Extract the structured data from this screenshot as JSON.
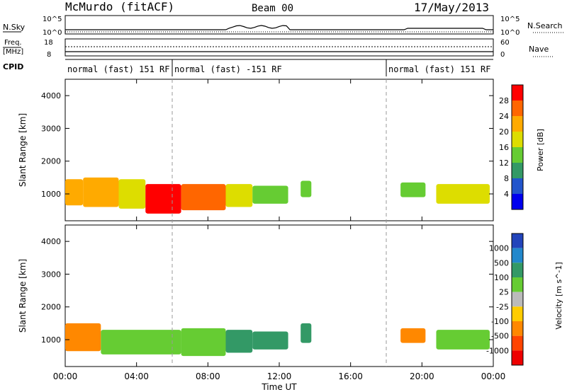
{
  "header": {
    "station": "McMurdo (fitACF)",
    "beam": "Beam 00",
    "date": "17/May/2013"
  },
  "strip": {
    "nsky_label": "N.Sky",
    "nsky_ticks": [
      "10^5",
      "10^0"
    ],
    "nsearch_label": "N.Search",
    "nsearch_ticks": [
      "10^5",
      "10^0"
    ],
    "freq_label_line1": "Freq.",
    "freq_label_line2": "[MHz]",
    "freq_ticks": [
      "18",
      "8"
    ],
    "nave_label": "Nave",
    "nave_ticks": [
      "60",
      "0"
    ],
    "cpid_label": "CPID",
    "modes": [
      {
        "label": "normal (fast) 151 RF",
        "start": 0,
        "end": 6
      },
      {
        "label": "normal (fast) -151 RF",
        "start": 6,
        "end": 18
      },
      {
        "label": "normal (fast) 151 RF",
        "start": 18,
        "end": 24
      }
    ]
  },
  "axes": {
    "x_ticks": [
      "00:00",
      "04:00",
      "08:00",
      "12:00",
      "16:00",
      "20:00",
      "00:00"
    ],
    "x_values": [
      0,
      4,
      8,
      12,
      16,
      20,
      24
    ],
    "xlabel": "Time UT",
    "ylabel": "Slant Range [km]",
    "y_ticks": [
      "4000",
      "3000",
      "2000",
      "1000"
    ],
    "y_values": [
      4000,
      3000,
      2000,
      1000
    ],
    "ylim": [
      180,
      4500
    ],
    "xlim": [
      0,
      24
    ]
  },
  "colorbars": {
    "power": {
      "label": "Power [dB]",
      "ticks": [
        "28",
        "24",
        "20",
        "16",
        "12",
        "8",
        "4"
      ],
      "colors": [
        "#ff0000",
        "#ff6600",
        "#ffaa00",
        "#dddd00",
        "#66cc33",
        "#339966",
        "#2255cc",
        "#0000ee"
      ]
    },
    "velocity": {
      "label": "Velocity [m s^-1]",
      "ticks": [
        "1000",
        "500",
        "100",
        "25",
        "-25",
        "-100",
        "-500",
        "-1000"
      ],
      "colors": [
        "#2244bb",
        "#2288cc",
        "#339966",
        "#66cc33",
        "#bbbbbb",
        "#ffcc00",
        "#ff8800",
        "#ff4400",
        "#ee0000"
      ]
    }
  },
  "chart_data": [
    {
      "type": "heatmap",
      "title": "",
      "xlabel": "Time UT",
      "ylabel": "Slant Range [km]",
      "colorbar": "Power [dB]",
      "xlim": [
        0,
        24
      ],
      "ylim": [
        180,
        4500
      ],
      "grid": false,
      "regions": [
        {
          "t": [
            0,
            1
          ],
          "r": [
            650,
            1450
          ],
          "value": 22
        },
        {
          "t": [
            1,
            3
          ],
          "r": [
            600,
            1500
          ],
          "value": 20
        },
        {
          "t": [
            3,
            4.5
          ],
          "r": [
            550,
            1450
          ],
          "value": 18
        },
        {
          "t": [
            4.5,
            6.5
          ],
          "r": [
            400,
            1300
          ],
          "value": 28
        },
        {
          "t": [
            6.5,
            9
          ],
          "r": [
            500,
            1300
          ],
          "value": 24
        },
        {
          "t": [
            9,
            10.5
          ],
          "r": [
            600,
            1300
          ],
          "value": 16
        },
        {
          "t": [
            10.5,
            12.5
          ],
          "r": [
            700,
            1250
          ],
          "value": 14
        },
        {
          "t": [
            13.2,
            13.8
          ],
          "r": [
            900,
            1400
          ],
          "value": 12
        },
        {
          "t": [
            18.8,
            20.2
          ],
          "r": [
            900,
            1350
          ],
          "value": 14
        },
        {
          "t": [
            20.8,
            23.8
          ],
          "r": [
            700,
            1300
          ],
          "value": 18
        }
      ]
    },
    {
      "type": "heatmap",
      "title": "",
      "xlabel": "Time UT",
      "ylabel": "Slant Range [km]",
      "colorbar": "Velocity [m s^-1]",
      "xlim": [
        0,
        24
      ],
      "ylim": [
        180,
        4500
      ],
      "grid": false,
      "regions": [
        {
          "t": [
            0,
            2
          ],
          "r": [
            650,
            1500
          ],
          "value": -250
        },
        {
          "t": [
            2,
            6.5
          ],
          "r": [
            550,
            1300
          ],
          "value": 60
        },
        {
          "t": [
            6.5,
            9
          ],
          "r": [
            500,
            1350
          ],
          "value": 60
        },
        {
          "t": [
            9,
            10.5
          ],
          "r": [
            600,
            1300
          ],
          "value": 100
        },
        {
          "t": [
            10.5,
            12.5
          ],
          "r": [
            700,
            1250
          ],
          "value": 100
        },
        {
          "t": [
            13.2,
            13.8
          ],
          "r": [
            900,
            1500
          ],
          "value": 150
        },
        {
          "t": [
            18.8,
            20.2
          ],
          "r": [
            900,
            1350
          ],
          "value": -200
        },
        {
          "t": [
            20.8,
            23.8
          ],
          "r": [
            700,
            1300
          ],
          "value": 80
        }
      ]
    }
  ]
}
